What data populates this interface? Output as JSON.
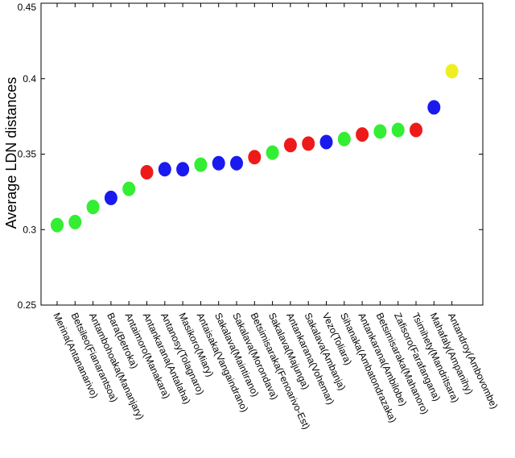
{
  "chart_data": {
    "type": "scatter",
    "title": "",
    "xlabel": "",
    "ylabel": "Average LDN distances",
    "ylim": [
      0.25,
      0.45
    ],
    "yticks": [
      "0.25",
      "0.3",
      "0.35",
      "0.4",
      "0.45"
    ],
    "grid": false,
    "legend": "none",
    "colors": {
      "green": "#33ee33",
      "blue": "#1a1aee",
      "red": "#ee1a1a",
      "yellow": "#eeee22"
    },
    "categories": [
      "Merina(Antananarivo)",
      "Betsileo(Fianarantsoa)",
      "Antambohoaka(Mananjary)",
      "Bara(Betroka)",
      "Antaimoro(Manakara)",
      "Antankarana(Antalaha)",
      "Antanosy(Tolagnaro)",
      "Masikoro(Miary)",
      "Antaisaka(Vangaindrano)",
      "Sakalava(Maintirano)",
      "Sakalava(Morondava)",
      "Betsimisaraka(Fenoarivo-Est)",
      "Sakalava(Majunga)",
      "Antankarana(Vohemar)",
      "Sakalava(Ambanja)",
      "Vezo(Toliara)",
      "Sihanaka(Ambatondrazaka)",
      "Antankarana(Ambilobe)",
      "Betsimisaraka(Mahanoro)",
      "Zafisoro(Farafangana)",
      "Tsimihety(Mandritsara)",
      "Mahafaly(Ampanihy)",
      "Antandroy(Ambovombe)"
    ],
    "values": [
      0.303,
      0.305,
      0.315,
      0.321,
      0.327,
      0.338,
      0.34,
      0.34,
      0.343,
      0.344,
      0.344,
      0.348,
      0.351,
      0.356,
      0.357,
      0.358,
      0.36,
      0.363,
      0.365,
      0.366,
      0.366,
      0.381,
      0.405
    ],
    "point_colors": [
      "green",
      "green",
      "green",
      "blue",
      "green",
      "red",
      "blue",
      "blue",
      "green",
      "blue",
      "blue",
      "red",
      "green",
      "red",
      "red",
      "blue",
      "green",
      "red",
      "green",
      "green",
      "red",
      "blue",
      "yellow"
    ]
  }
}
